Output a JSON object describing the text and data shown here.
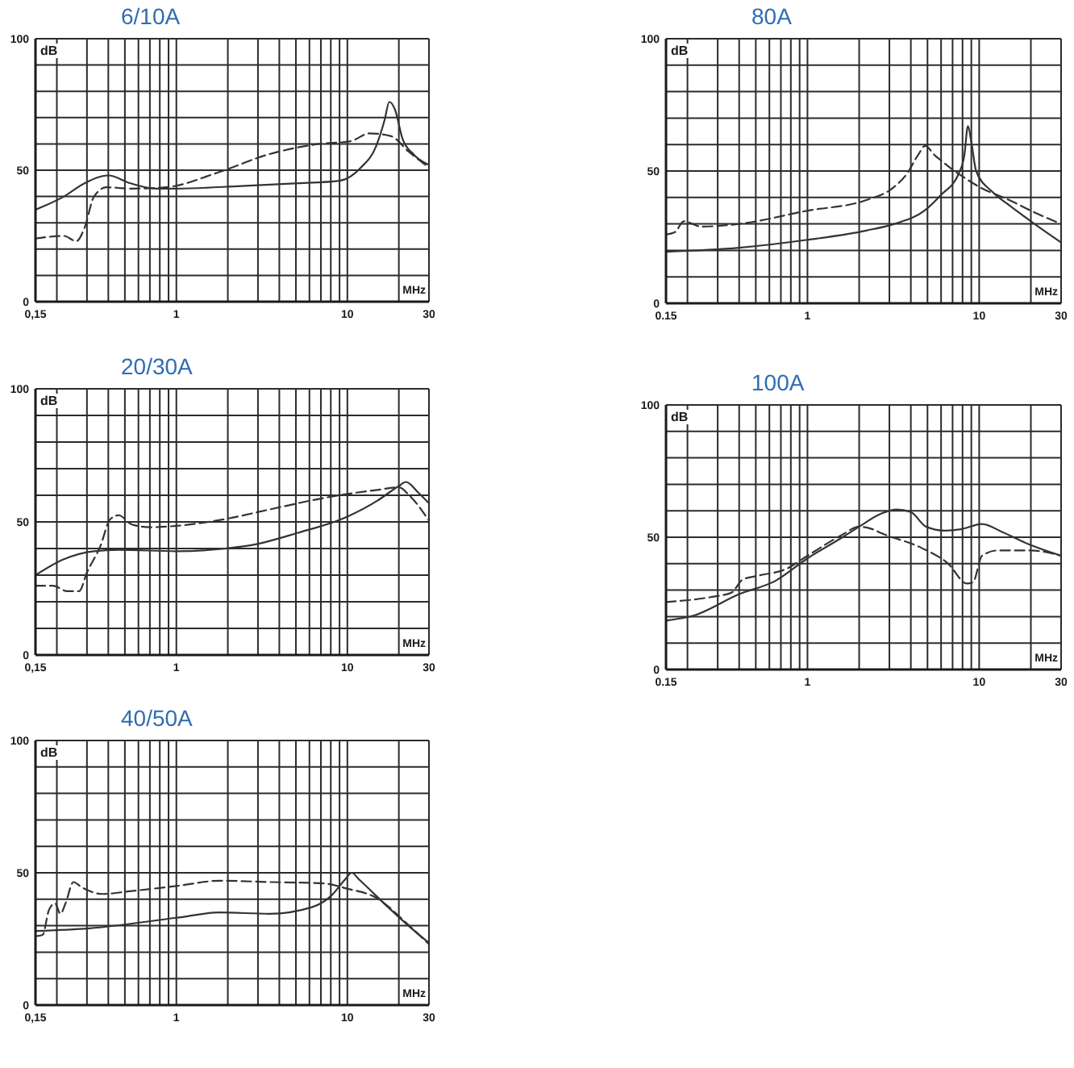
{
  "chart_data": [
    {
      "type": "line",
      "title": "6/10A",
      "xlabel": "MHz",
      "ylabel": "dB",
      "log": "x",
      "grid": true,
      "xlim": [
        0.15,
        30
      ],
      "xticks": [
        {
          "value": 0.15,
          "label": "0,15"
        },
        {
          "value": 0.2,
          "label": null
        },
        {
          "value": 0.3,
          "label": null
        },
        {
          "value": 0.4,
          "label": null
        },
        {
          "value": 0.5,
          "label": null
        },
        {
          "value": 0.6,
          "label": null
        },
        {
          "value": 0.7,
          "label": null
        },
        {
          "value": 0.8,
          "label": null
        },
        {
          "value": 0.9,
          "label": null
        },
        1,
        {
          "value": 2,
          "label": null
        },
        {
          "value": 3,
          "label": null
        },
        {
          "value": 4,
          "label": null
        },
        {
          "value": 5,
          "label": null
        },
        {
          "value": 6,
          "label": null
        },
        {
          "value": 7,
          "label": null
        },
        {
          "value": 8,
          "label": null
        },
        {
          "value": 9,
          "label": null
        },
        10,
        {
          "value": 20,
          "label": null
        },
        30
      ],
      "ylim": [
        0,
        100
      ],
      "yticks": [
        0,
        {
          "value": 10,
          "label": null
        },
        {
          "value": 20,
          "label": null
        },
        {
          "value": 30,
          "label": null
        },
        {
          "value": 40,
          "label": null
        },
        50,
        {
          "value": 60,
          "label": null
        },
        {
          "value": 70,
          "label": null
        },
        {
          "value": 80,
          "label": null
        },
        {
          "value": 90,
          "label": null
        },
        100
      ],
      "series": [
        {
          "color": "#333333",
          "line_style": "solid",
          "x": [
            0.15,
            0.22,
            0.29,
            0.4,
            0.54,
            0.76,
            1,
            2.4,
            4.9,
            9,
            12,
            14.7,
            16.5,
            17.6,
            19,
            21,
            24.4,
            30
          ],
          "values": [
            35,
            40,
            45,
            48,
            45,
            43,
            43,
            44,
            45,
            46,
            51,
            59,
            69,
            76,
            73,
            62,
            56,
            52
          ]
        },
        {
          "color": "#333333",
          "line_style": "dashed",
          "x": [
            0.15,
            0.22,
            0.26,
            0.29,
            0.33,
            0.39,
            0.54,
            0.87,
            1.73,
            3.45,
            6.85,
            10.4,
            13.5,
            17.9,
            22.9,
            30
          ],
          "values": [
            24,
            25,
            23,
            28,
            40,
            43.5,
            43,
            43.5,
            49,
            56,
            60,
            61,
            64,
            63,
            57,
            51
          ]
        }
      ]
    },
    {
      "type": "line",
      "title": "80A",
      "xlabel": "MHz",
      "ylabel": "dB",
      "log": "x",
      "grid": true,
      "xlim": [
        0.15,
        30
      ],
      "xticks": [
        0.15,
        {
          "value": 0.2,
          "label": null
        },
        {
          "value": 0.3,
          "label": null
        },
        {
          "value": 0.4,
          "label": null
        },
        {
          "value": 0.5,
          "label": null
        },
        {
          "value": 0.6,
          "label": null
        },
        {
          "value": 0.7,
          "label": null
        },
        {
          "value": 0.8,
          "label": null
        },
        {
          "value": 0.9,
          "label": null
        },
        1,
        {
          "value": 2,
          "label": null
        },
        {
          "value": 3,
          "label": null
        },
        {
          "value": 4,
          "label": null
        },
        {
          "value": 5,
          "label": null
        },
        {
          "value": 6,
          "label": null
        },
        {
          "value": 7,
          "label": null
        },
        {
          "value": 8,
          "label": null
        },
        {
          "value": 9,
          "label": null
        },
        10,
        {
          "value": 20,
          "label": null
        },
        30
      ],
      "ylim": [
        0,
        100
      ],
      "yticks": [
        0,
        {
          "value": 10,
          "label": null
        },
        {
          "value": 20,
          "label": null
        },
        {
          "value": 30,
          "label": null
        },
        {
          "value": 40,
          "label": null
        },
        50,
        {
          "value": 60,
          "label": null
        },
        {
          "value": 70,
          "label": null
        },
        {
          "value": 80,
          "label": null
        },
        {
          "value": 90,
          "label": null
        },
        100
      ],
      "series": [
        {
          "color": "#333333",
          "line_style": "solid",
          "x": [
            0.15,
            0.4,
            1,
            2.2,
            3.2,
            4.8,
            6,
            7.6,
            8.2,
            8.6,
            9,
            9.6,
            12,
            15,
            20,
            30
          ],
          "values": [
            19.5,
            21,
            24,
            27.5,
            30,
            35,
            41,
            49,
            56,
            67,
            61,
            50,
            42,
            37,
            31,
            23
          ]
        },
        {
          "color": "#333333",
          "line_style": "dashed",
          "x": [
            0.15,
            0.17,
            0.19,
            0.24,
            0.4,
            1,
            2.2,
            3.2,
            3.8,
            4.4,
            4.85,
            5.5,
            6,
            7,
            8.2,
            10,
            15,
            20,
            30
          ],
          "values": [
            26,
            27,
            31,
            29,
            30,
            35,
            39,
            44,
            49,
            56,
            59.5,
            56,
            54,
            50.5,
            47.5,
            44,
            39,
            35,
            30
          ]
        }
      ]
    },
    {
      "type": "line",
      "title": "20/30A",
      "xlabel": "MHz",
      "ylabel": "dB",
      "log": "x",
      "grid": true,
      "xlim": [
        0.15,
        30
      ],
      "xticks": [
        {
          "value": 0.15,
          "label": "0,15"
        },
        {
          "value": 0.2,
          "label": null
        },
        {
          "value": 0.3,
          "label": null
        },
        {
          "value": 0.4,
          "label": null
        },
        {
          "value": 0.5,
          "label": null
        },
        {
          "value": 0.6,
          "label": null
        },
        {
          "value": 0.7,
          "label": null
        },
        {
          "value": 0.8,
          "label": null
        },
        {
          "value": 0.9,
          "label": null
        },
        1,
        {
          "value": 2,
          "label": null
        },
        {
          "value": 3,
          "label": null
        },
        {
          "value": 4,
          "label": null
        },
        {
          "value": 5,
          "label": null
        },
        {
          "value": 6,
          "label": null
        },
        {
          "value": 7,
          "label": null
        },
        {
          "value": 8,
          "label": null
        },
        {
          "value": 9,
          "label": null
        },
        10,
        {
          "value": 20,
          "label": null
        },
        30
      ],
      "ylim": [
        0,
        100
      ],
      "yticks": [
        0,
        {
          "value": 10,
          "label": null
        },
        {
          "value": 20,
          "label": null
        },
        {
          "value": 30,
          "label": null
        },
        {
          "value": 40,
          "label": null
        },
        50,
        {
          "value": 60,
          "label": null
        },
        {
          "value": 70,
          "label": null
        },
        {
          "value": 80,
          "label": null
        },
        {
          "value": 90,
          "label": null
        },
        100
      ],
      "series": [
        {
          "color": "#333333",
          "line_style": "solid",
          "x": [
            0.15,
            0.22,
            0.33,
            0.46,
            1,
            2.6,
            5.2,
            10,
            15,
            20,
            22,
            26,
            30
          ],
          "values": [
            30,
            36,
            39,
            39.5,
            39,
            41,
            46,
            52,
            58,
            63.5,
            65,
            61,
            57
          ]
        },
        {
          "color": "#333333",
          "line_style": "dashed",
          "x": [
            0.15,
            0.19,
            0.23,
            0.27,
            0.3,
            0.36,
            0.41,
            0.46,
            0.55,
            0.7,
            1,
            1.9,
            3.7,
            7.3,
            10,
            15,
            20,
            23,
            30
          ],
          "values": [
            26,
            26,
            24,
            24,
            31,
            41,
            51,
            52.5,
            49,
            48,
            48.5,
            51,
            55,
            59,
            60.5,
            62,
            63,
            60,
            50.5
          ]
        }
      ]
    },
    {
      "type": "line",
      "title": "100A",
      "xlabel": "MHz",
      "ylabel": "dB",
      "log": "x",
      "grid": true,
      "xlim": [
        0.15,
        30
      ],
      "xticks": [
        0.15,
        {
          "value": 0.2,
          "label": null
        },
        {
          "value": 0.3,
          "label": null
        },
        {
          "value": 0.4,
          "label": null
        },
        {
          "value": 0.5,
          "label": null
        },
        {
          "value": 0.6,
          "label": null
        },
        {
          "value": 0.7,
          "label": null
        },
        {
          "value": 0.8,
          "label": null
        },
        {
          "value": 0.9,
          "label": null
        },
        1,
        {
          "value": 2,
          "label": null
        },
        {
          "value": 3,
          "label": null
        },
        {
          "value": 4,
          "label": null
        },
        {
          "value": 5,
          "label": null
        },
        {
          "value": 6,
          "label": null
        },
        {
          "value": 7,
          "label": null
        },
        {
          "value": 8,
          "label": null
        },
        {
          "value": 9,
          "label": null
        },
        10,
        {
          "value": 20,
          "label": null
        },
        30
      ],
      "ylim": [
        0,
        100
      ],
      "yticks": [
        0,
        {
          "value": 10,
          "label": null
        },
        {
          "value": 20,
          "label": null
        },
        {
          "value": 30,
          "label": null
        },
        {
          "value": 40,
          "label": null
        },
        50,
        {
          "value": 60,
          "label": null
        },
        {
          "value": 70,
          "label": null
        },
        {
          "value": 80,
          "label": null
        },
        {
          "value": 90,
          "label": null
        },
        100
      ],
      "series": [
        {
          "color": "#333333",
          "line_style": "solid",
          "x": [
            0.15,
            0.22,
            0.4,
            0.65,
            1,
            1.6,
            2,
            2.7,
            3.3,
            4,
            4.9,
            6.3,
            7.8,
            10.4,
            13.6,
            20,
            30
          ],
          "values": [
            18.5,
            20.5,
            28.5,
            33.5,
            42,
            50,
            54,
            59,
            60.5,
            59.5,
            54,
            52.5,
            53,
            55,
            52,
            47,
            43
          ]
        },
        {
          "color": "#333333",
          "line_style": "dashed",
          "x": [
            0.15,
            0.28,
            0.36,
            0.42,
            0.52,
            0.75,
            1,
            1.6,
            2,
            2.4,
            2.7,
            4.6,
            6.6,
            8.5,
            9.2,
            10.4,
            12.8,
            20,
            30
          ],
          "values": [
            25.5,
            27.5,
            29,
            34,
            35.5,
            38,
            43,
            51,
            54,
            53,
            51.5,
            46,
            40,
            32.5,
            33,
            43,
            45,
            45,
            43
          ]
        }
      ]
    },
    {
      "type": "line",
      "title": "40/50A",
      "xlabel": "MHz",
      "ylabel": "dB",
      "log": "x",
      "grid": true,
      "xlim": [
        0.15,
        30
      ],
      "xticks": [
        {
          "value": 0.15,
          "label": "0,15"
        },
        {
          "value": 0.2,
          "label": null
        },
        {
          "value": 0.3,
          "label": null
        },
        {
          "value": 0.4,
          "label": null
        },
        {
          "value": 0.5,
          "label": null
        },
        {
          "value": 0.6,
          "label": null
        },
        {
          "value": 0.7,
          "label": null
        },
        {
          "value": 0.8,
          "label": null
        },
        {
          "value": 0.9,
          "label": null
        },
        1,
        {
          "value": 2,
          "label": null
        },
        {
          "value": 3,
          "label": null
        },
        {
          "value": 4,
          "label": null
        },
        {
          "value": 5,
          "label": null
        },
        {
          "value": 6,
          "label": null
        },
        {
          "value": 7,
          "label": null
        },
        {
          "value": 8,
          "label": null
        },
        {
          "value": 9,
          "label": null
        },
        10,
        {
          "value": 20,
          "label": null
        },
        30
      ],
      "ylim": [
        0,
        100
      ],
      "yticks": [
        0,
        {
          "value": 10,
          "label": null
        },
        {
          "value": 20,
          "label": null
        },
        {
          "value": 30,
          "label": null
        },
        {
          "value": 40,
          "label": null
        },
        50,
        {
          "value": 60,
          "label": null
        },
        {
          "value": 70,
          "label": null
        },
        {
          "value": 80,
          "label": null
        },
        {
          "value": 90,
          "label": null
        },
        100
      ],
      "series": [
        {
          "color": "#333333",
          "line_style": "solid",
          "x": [
            0.15,
            0.31,
            1,
            1.8,
            3.5,
            6.2,
            8.1,
            9.7,
            10.6,
            11.7,
            17.3,
            23.7,
            30
          ],
          "values": [
            28,
            29,
            33,
            35,
            34.5,
            37,
            41.5,
            47.5,
            50,
            47.5,
            37,
            29,
            23.5
          ]
        },
        {
          "color": "#333333",
          "line_style": "dashed",
          "x": [
            0.15,
            0.165,
            0.18,
            0.195,
            0.21,
            0.225,
            0.25,
            0.28,
            0.37,
            0.53,
            1,
            1.8,
            3.5,
            7.2,
            10,
            14.8,
            23,
            30
          ],
          "values": [
            26,
            26.5,
            36,
            38.5,
            34.5,
            38.5,
            46.5,
            44.5,
            42,
            43,
            45,
            47,
            46.5,
            46,
            44,
            40.5,
            30,
            23
          ]
        }
      ]
    }
  ]
}
